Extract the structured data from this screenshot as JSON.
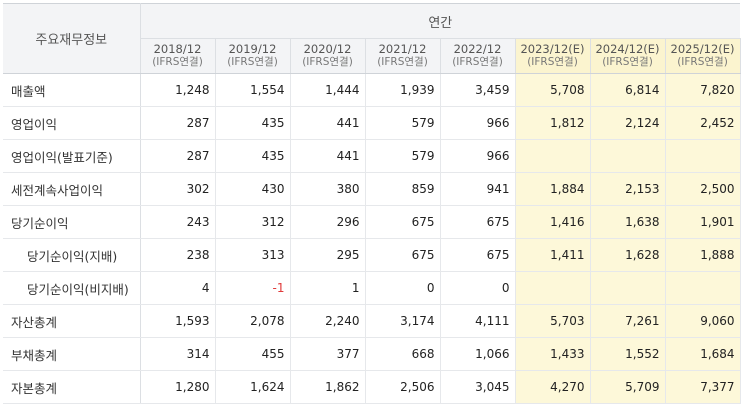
{
  "header": {
    "row_label": "주요재무정보",
    "group_label": "연간",
    "years": [
      {
        "year": "2018/12",
        "basis": "(IFRS연결)",
        "estimate": false
      },
      {
        "year": "2019/12",
        "basis": "(IFRS연결)",
        "estimate": false
      },
      {
        "year": "2020/12",
        "basis": "(IFRS연결)",
        "estimate": false
      },
      {
        "year": "2021/12",
        "basis": "(IFRS연결)",
        "estimate": false
      },
      {
        "year": "2022/12",
        "basis": "(IFRS연결)",
        "estimate": false
      },
      {
        "year": "2023/12(E)",
        "basis": "(IFRS연결)",
        "estimate": true
      },
      {
        "year": "2024/12(E)",
        "basis": "(IFRS연결)",
        "estimate": true
      },
      {
        "year": "2025/12(E)",
        "basis": "(IFRS연결)",
        "estimate": true
      }
    ]
  },
  "rows": [
    {
      "label": "매출액",
      "indent": false,
      "values": [
        "1,248",
        "1,554",
        "1,444",
        "1,939",
        "3,459",
        "5,708",
        "6,814",
        "7,820"
      ]
    },
    {
      "label": "영업이익",
      "indent": false,
      "values": [
        "287",
        "435",
        "441",
        "579",
        "966",
        "1,812",
        "2,124",
        "2,452"
      ]
    },
    {
      "label": "영업이익(발표기준)",
      "indent": false,
      "values": [
        "287",
        "435",
        "441",
        "579",
        "966",
        "",
        "",
        ""
      ]
    },
    {
      "label": "세전계속사업이익",
      "indent": false,
      "values": [
        "302",
        "430",
        "380",
        "859",
        "941",
        "1,884",
        "2,153",
        "2,500"
      ]
    },
    {
      "label": "당기순이익",
      "indent": false,
      "values": [
        "243",
        "312",
        "296",
        "675",
        "675",
        "1,416",
        "1,638",
        "1,901"
      ]
    },
    {
      "label": "당기순이익(지배)",
      "indent": true,
      "values": [
        "238",
        "313",
        "295",
        "675",
        "675",
        "1,411",
        "1,628",
        "1,888"
      ]
    },
    {
      "label": "당기순이익(비지배)",
      "indent": true,
      "values": [
        "4",
        "-1",
        "1",
        "0",
        "0",
        "",
        "",
        ""
      ]
    },
    {
      "label": "자산총계",
      "indent": false,
      "values": [
        "1,593",
        "2,078",
        "2,240",
        "3,174",
        "4,111",
        "5,703",
        "7,261",
        "9,060"
      ]
    },
    {
      "label": "부채총계",
      "indent": false,
      "values": [
        "314",
        "455",
        "377",
        "668",
        "1,066",
        "1,433",
        "1,552",
        "1,684"
      ]
    },
    {
      "label": "자본총계",
      "indent": false,
      "values": [
        "1,280",
        "1,624",
        "1,862",
        "2,506",
        "3,045",
        "4,270",
        "5,709",
        "7,377"
      ]
    }
  ],
  "colors": {
    "estimate_header_bg": "#fbf4cf",
    "estimate_cell_bg": "#fdf8d9",
    "negative_text": "#e03b3b",
    "header_bg": "#f3f4f6"
  }
}
